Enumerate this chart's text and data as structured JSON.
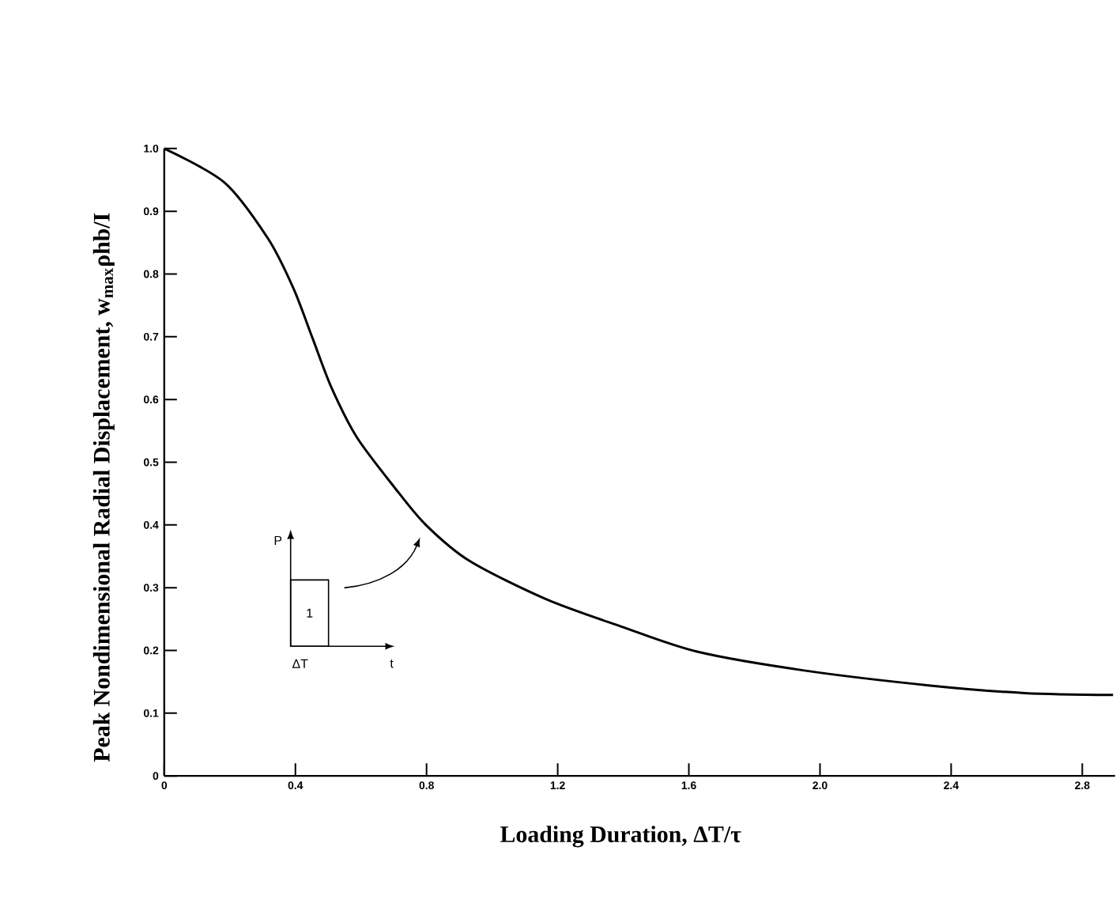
{
  "chart_data": {
    "type": "line",
    "xlabel": "Loading Duration, ΔT/τ",
    "ylabel": "Peak Nondimensional Radial Displacement, w$_{max}$ρhb/I",
    "x": [
      0,
      0.183,
      0.317,
      0.394,
      0.452,
      0.51,
      0.587,
      0.702,
      0.798,
      0.933,
      1.163,
      1.394,
      1.625,
      1.952,
      2.337,
      2.625,
      2.894
    ],
    "values": [
      1.0,
      0.946,
      0.856,
      0.777,
      0.698,
      0.619,
      0.54,
      0.46,
      0.4,
      0.342,
      0.282,
      0.238,
      0.198,
      0.168,
      0.144,
      0.132,
      0.129
    ],
    "color": "#000000",
    "marker": "none",
    "line_style": "solid",
    "xlim": [
      0,
      2.9
    ],
    "ylim": [
      0,
      1.0
    ],
    "xticks": [
      0,
      0.4,
      0.8,
      1.2,
      1.6,
      {
        "value": 2.0,
        "label": "2.0"
      },
      2.4,
      2.8
    ],
    "yticks": [
      0,
      0.1,
      0.2,
      0.3,
      0.4,
      0.5,
      0.6,
      0.7,
      0.8,
      0.9,
      {
        "value": 1.0,
        "label": "1.0"
      }
    ],
    "annotations": [
      "P",
      "1",
      "ΔT",
      "t"
    ]
  }
}
